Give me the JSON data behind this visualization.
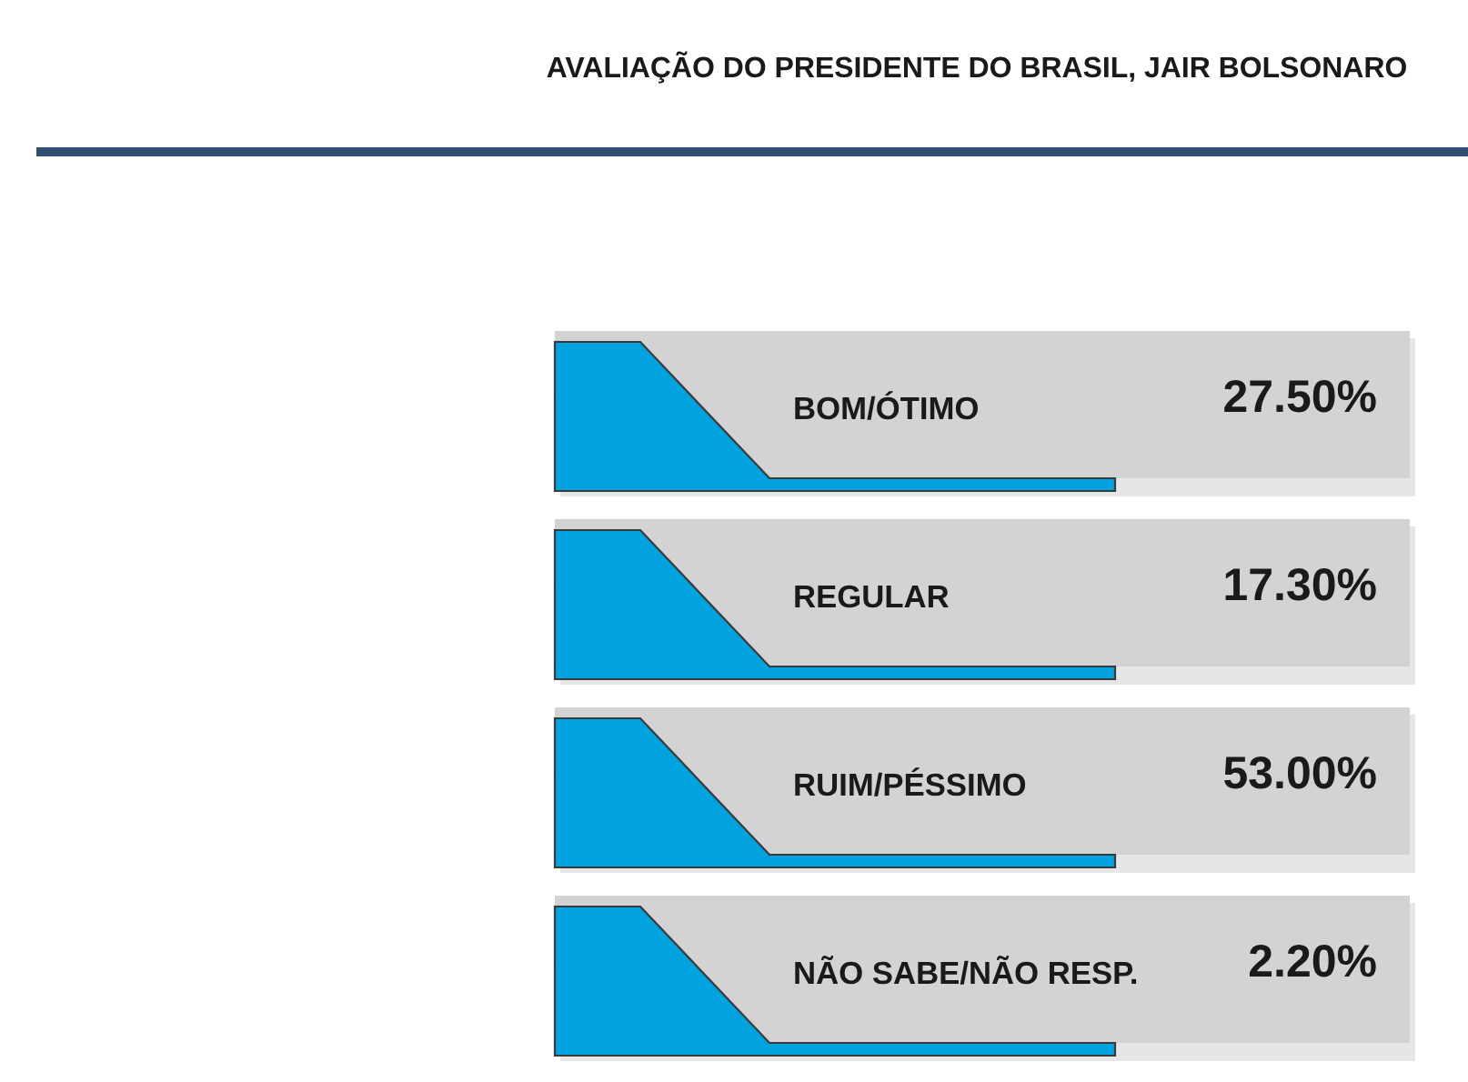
{
  "chart_data": {
    "type": "other",
    "title": "AVALIAÇÃO DO PRESIDENTE DO BRASIL, JAIR BOLSONARO",
    "categories": [
      "BOM/ÓTIMO",
      "REGULAR",
      "RUIM/PÉSSIMO",
      "NÃO SABE/NÃO RESP."
    ],
    "values": [
      27.5,
      17.3,
      53.0,
      2.2
    ],
    "value_labels": [
      "27.50%",
      "17.30%",
      "53.00%",
      "2.20%"
    ],
    "color": "#d3d3d5"
  }
}
